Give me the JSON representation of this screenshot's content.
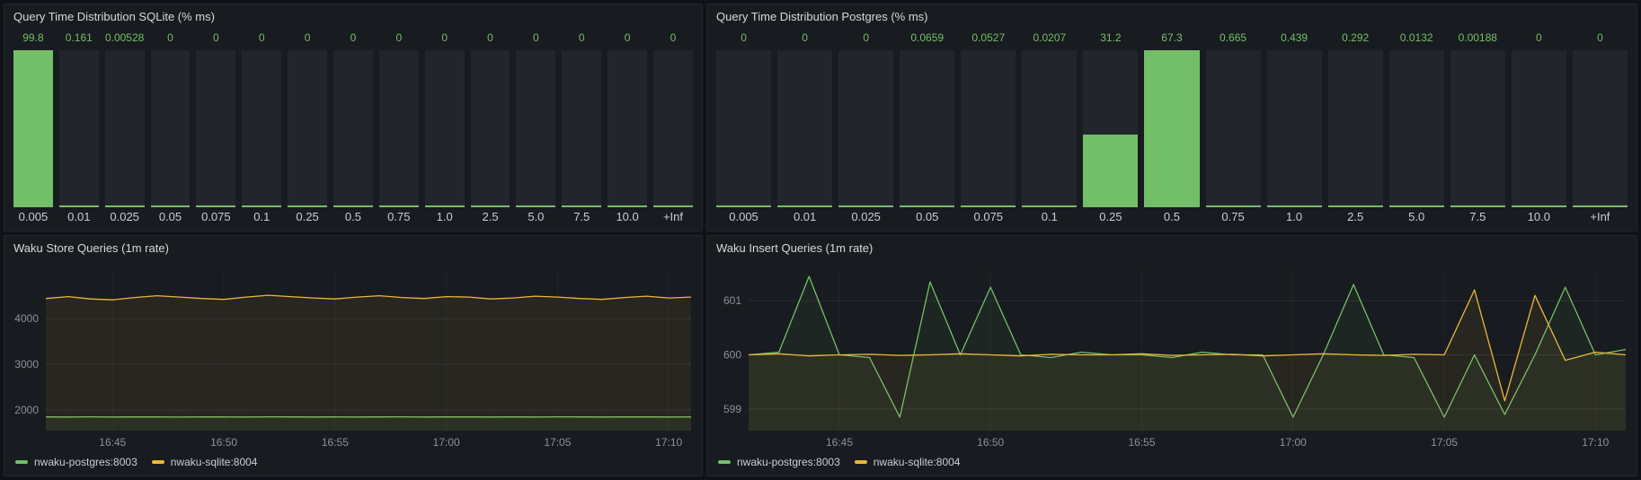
{
  "colors": {
    "green": "#73BF69",
    "yellow": "#EAB839",
    "bar_track": "#22262C",
    "panel_bg": "#181B1F",
    "page_bg": "#111217",
    "text": "#D8D9DA"
  },
  "chart_data": [
    {
      "type": "bar",
      "title": "Query Time Distribution SQLite (% ms)",
      "categories": [
        "0.005",
        "0.01",
        "0.025",
        "0.05",
        "0.075",
        "0.1",
        "0.25",
        "0.5",
        "0.75",
        "1.0",
        "2.5",
        "5.0",
        "7.5",
        "10.0",
        "+Inf"
      ],
      "values": [
        99.8,
        0.161,
        0.00528,
        0,
        0,
        0,
        0,
        0,
        0,
        0,
        0,
        0,
        0,
        0,
        0
      ],
      "value_labels": [
        "99.8",
        "0.161",
        "0.00528",
        "0",
        "0",
        "0",
        "0",
        "0",
        "0",
        "0",
        "0",
        "0",
        "0",
        "0",
        "0"
      ],
      "ylim": [
        0,
        99.8
      ],
      "bar_color_key": "green",
      "value_label_position": "top",
      "grid": false
    },
    {
      "type": "bar",
      "title": "Query Time Distribution Postgres (% ms)",
      "categories": [
        "0.005",
        "0.01",
        "0.025",
        "0.05",
        "0.075",
        "0.1",
        "0.25",
        "0.5",
        "0.75",
        "1.0",
        "2.5",
        "5.0",
        "7.5",
        "10.0",
        "+Inf"
      ],
      "values": [
        0,
        0,
        0,
        0.0659,
        0.0527,
        0.0207,
        31.2,
        67.3,
        0.665,
        0.439,
        0.292,
        0.0132,
        0.00188,
        0,
        0
      ],
      "value_labels": [
        "0",
        "0",
        "0",
        "0.0659",
        "0.0527",
        "0.0207",
        "31.2",
        "67.3",
        "0.665",
        "0.439",
        "0.292",
        "0.0132",
        "0.00188",
        "0",
        "0"
      ],
      "ylim": [
        0,
        67.3
      ],
      "bar_color_key": "green",
      "value_label_position": "top",
      "grid": false
    },
    {
      "type": "line",
      "title": "Waku Store Queries (1m rate)",
      "x_start": "16:42",
      "x_end": "17:11",
      "n": 30,
      "xticks": [
        {
          "label": "16:45",
          "i": 3
        },
        {
          "label": "16:50",
          "i": 8
        },
        {
          "label": "16:55",
          "i": 13
        },
        {
          "label": "17:00",
          "i": 18
        },
        {
          "label": "17:05",
          "i": 23
        },
        {
          "label": "17:10",
          "i": 28
        }
      ],
      "ylim": [
        1550,
        5100
      ],
      "yticks": [
        2000,
        3000,
        4000
      ],
      "grid": true,
      "legend_position": "bottom",
      "series": [
        {
          "name": "nwaku-postgres:8003",
          "color_key": "green",
          "values": [
            1850,
            1848,
            1852,
            1849,
            1851,
            1850,
            1847,
            1851,
            1850,
            1849,
            1852,
            1850,
            1848,
            1851,
            1849,
            1850,
            1852,
            1848,
            1850,
            1851,
            1849,
            1850,
            1848,
            1852,
            1850,
            1849,
            1851,
            1850,
            1849,
            1851
          ]
        },
        {
          "name": "nwaku-sqlite:8004",
          "color_key": "yellow",
          "values": [
            4440,
            4480,
            4430,
            4410,
            4460,
            4500,
            4470,
            4440,
            4420,
            4470,
            4510,
            4480,
            4450,
            4430,
            4470,
            4500,
            4460,
            4440,
            4480,
            4470,
            4430,
            4450,
            4490,
            4470,
            4440,
            4420,
            4460,
            4490,
            4450,
            4470
          ]
        }
      ]
    },
    {
      "type": "line",
      "title": "Waku Insert Queries (1m rate)",
      "x_start": "16:42",
      "x_end": "17:11",
      "n": 30,
      "xticks": [
        {
          "label": "16:45",
          "i": 3
        },
        {
          "label": "16:50",
          "i": 8
        },
        {
          "label": "16:55",
          "i": 13
        },
        {
          "label": "17:00",
          "i": 18
        },
        {
          "label": "17:05",
          "i": 23
        },
        {
          "label": "17:10",
          "i": 28
        }
      ],
      "ylim": [
        598.6,
        601.6
      ],
      "yticks": [
        599,
        600,
        601
      ],
      "grid": true,
      "legend_position": "bottom",
      "series": [
        {
          "name": "nwaku-postgres:8003",
          "color_key": "green",
          "values": [
            600,
            600.05,
            601.45,
            600,
            599.95,
            598.85,
            601.35,
            600,
            601.25,
            600,
            599.95,
            600.05,
            600,
            600,
            599.95,
            600.05,
            600,
            600,
            598.85,
            600,
            601.3,
            600,
            599.95,
            598.85,
            600,
            598.9,
            600,
            601.25,
            600,
            600.1
          ]
        },
        {
          "name": "nwaku-sqlite:8004",
          "color_key": "yellow",
          "values": [
            600,
            600.02,
            599.98,
            600,
            600.01,
            599.99,
            600,
            600.02,
            600,
            599.98,
            600.01,
            600,
            600,
            600.02,
            599.99,
            600,
            600.01,
            599.98,
            600,
            600.02,
            600,
            599.99,
            600.01,
            600,
            601.2,
            599.15,
            601.1,
            599.9,
            600.05,
            600
          ]
        }
      ]
    }
  ]
}
